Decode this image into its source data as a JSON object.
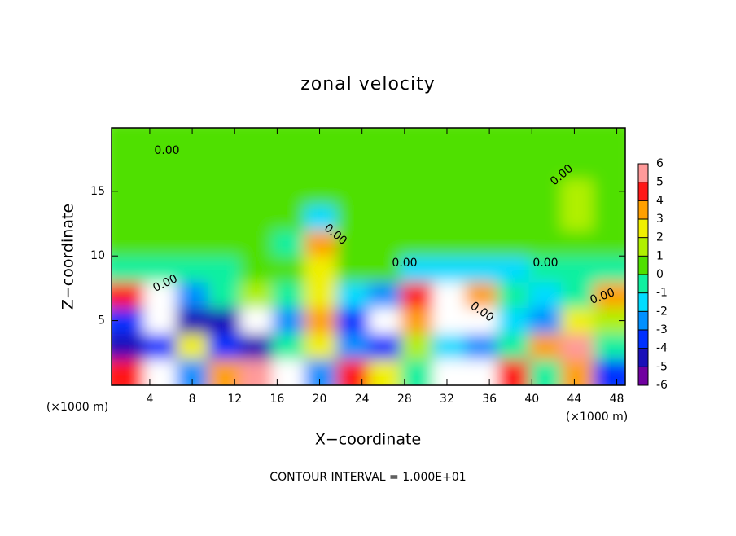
{
  "chart_data": {
    "type": "contour",
    "title": "zonal velocity",
    "x_label": "X−coordinate",
    "y_label": "Z−coordinate",
    "x_unit_labels": [
      "(×1000 m)",
      "(×1000 m)"
    ],
    "footer": "CONTOUR INTERVAL = 1.000E+01",
    "xlim": [
      0.4,
      48.8
    ],
    "ylim": [
      0,
      19.9
    ],
    "xticks": [
      4,
      8,
      12,
      16,
      20,
      24,
      28,
      32,
      36,
      40,
      44,
      48
    ],
    "yticks": [
      5,
      10,
      15
    ],
    "z": [
      [
        0.3,
        0.3,
        0.3,
        0.3,
        0.3,
        0.3,
        0.3,
        0.3,
        0.3,
        0.3,
        0.3,
        0.3,
        0.3,
        0.3,
        0.4,
        0.4
      ],
      [
        0.3,
        0.3,
        0.3,
        0.3,
        0.3,
        0.3,
        0.3,
        0.3,
        0.3,
        0.3,
        0.3,
        0.3,
        0.3,
        0.3,
        0.5,
        0.5
      ],
      [
        0.3,
        0.3,
        0.3,
        0.3,
        0.3,
        0.3,
        0.3,
        0.3,
        0.3,
        0.3,
        0.3,
        0.3,
        0.3,
        0.6,
        1,
        0.5
      ],
      [
        0.3,
        0.3,
        0.3,
        0.3,
        0.3,
        0.3,
        -2,
        0.3,
        0.3,
        0.3,
        0.3,
        0.3,
        0.3,
        0.5,
        1.5,
        0.5
      ],
      [
        0.3,
        0.3,
        0.3,
        0.3,
        0.3,
        -1,
        3,
        0.3,
        0.3,
        0,
        0,
        0,
        0,
        0.3,
        0.5,
        0.3
      ],
      [
        -0.5,
        -0.5,
        -0.5,
        -0.5,
        0.3,
        0.3,
        2,
        0.3,
        0.3,
        -2,
        -2,
        -2,
        -2,
        -1,
        -0.5,
        -0.3
      ],
      [
        4,
        8,
        -3,
        -1,
        1,
        -1,
        2,
        -2,
        -3,
        4,
        7,
        3,
        -1,
        -2,
        -1,
        3
      ],
      [
        -4,
        8,
        -5,
        -5,
        -7,
        -3,
        3,
        -4,
        -7,
        3,
        8,
        8,
        -2,
        -3,
        2,
        1
      ],
      [
        -5,
        -4,
        2,
        -4,
        -5,
        -1,
        2,
        -3,
        -4,
        1,
        -2,
        -3,
        -1,
        3,
        5,
        -1
      ],
      [
        4,
        8,
        -3,
        3,
        5,
        8,
        -3,
        4,
        2,
        -1,
        7,
        8,
        4,
        -1,
        3,
        -4
      ]
    ],
    "colorbar_ticks": [
      -6,
      -5,
      -4,
      -3,
      -2,
      -1,
      0,
      1,
      2,
      3,
      4,
      5,
      6
    ],
    "colors": [
      "#7000a0",
      "#1a10b8",
      "#0030ff",
      "#0090ff",
      "#00dcff",
      "#10f0a0",
      "#50e000",
      "#b0f000",
      "#f0f000",
      "#ffa000",
      "#ff1818",
      "#ff9a9a"
    ],
    "contour_labels": [
      "0.00",
      "0.00",
      "0.00",
      "0.00",
      "0.00",
      "0.00",
      "0.00",
      "0.00"
    ]
  }
}
